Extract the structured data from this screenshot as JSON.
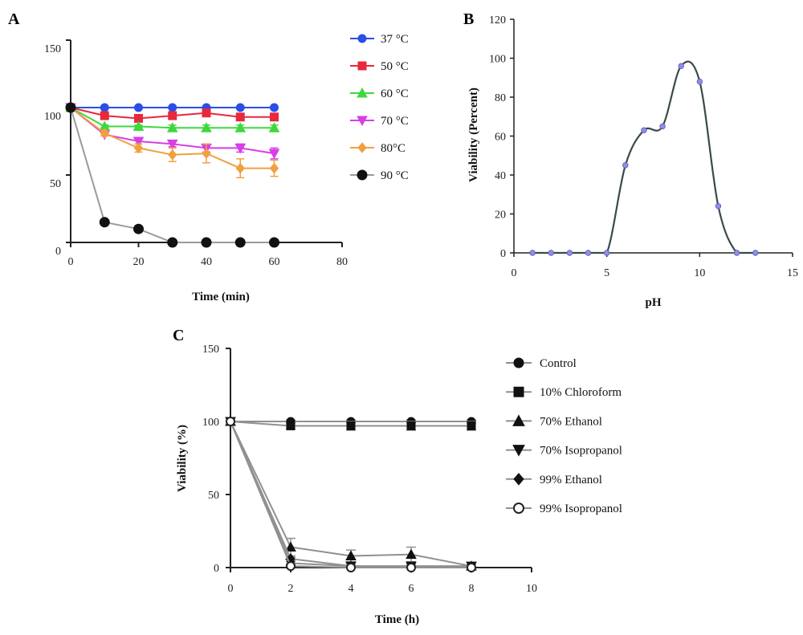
{
  "chart_data": [
    {
      "panel": "A",
      "type": "line",
      "xlabel": "Time (min)",
      "ylabel": "",
      "xlim": [
        0,
        80
      ],
      "ylim": [
        0,
        150
      ],
      "xticks": [
        "0",
        "20",
        "40",
        "60",
        "80"
      ],
      "yticks": [
        "0",
        "50",
        "100",
        "150"
      ],
      "x": [
        0,
        10,
        20,
        30,
        40,
        50,
        60
      ],
      "legend_position": "right",
      "series": [
        {
          "name": "37 °C",
          "color": "#2b4ee8",
          "marker": "circle",
          "values": [
            100,
            100,
            100,
            100,
            100,
            100,
            100
          ],
          "err": [
            0,
            0,
            0,
            0,
            0,
            0,
            0
          ]
        },
        {
          "name": "50 °C",
          "color": "#e8283c",
          "marker": "square",
          "values": [
            100,
            94,
            92,
            94,
            96,
            93,
            93
          ],
          "err": [
            0,
            1,
            1,
            1,
            1,
            2,
            2
          ]
        },
        {
          "name": "60 °C",
          "color": "#3ed83e",
          "marker": "triangle-up",
          "values": [
            100,
            86,
            86,
            85,
            85,
            85,
            85
          ],
          "err": [
            0,
            1,
            1,
            2,
            2,
            2,
            2
          ]
        },
        {
          "name": "70 °C",
          "color": "#d83ee6",
          "marker": "triangle-down",
          "values": [
            100,
            80,
            75,
            73,
            70,
            70,
            66
          ],
          "err": [
            0,
            1,
            2,
            2,
            3,
            3,
            4
          ]
        },
        {
          "name": "80°C",
          "color": "#f0a040",
          "marker": "diamond",
          "values": [
            100,
            81,
            70,
            65,
            66,
            55,
            55
          ],
          "err": [
            0,
            2,
            3,
            5,
            7,
            7,
            6
          ]
        },
        {
          "name": "90 °C",
          "color": "#111111",
          "marker": "circle",
          "line_color": "#9a9a9a",
          "values": [
            100,
            15,
            10,
            0,
            0,
            0,
            0
          ],
          "err": [
            0,
            0,
            0,
            0,
            0,
            0,
            0
          ]
        }
      ]
    },
    {
      "panel": "B",
      "type": "line",
      "xlabel": "pH",
      "ylabel": "Viability (Percent)",
      "xlim": [
        0,
        15
      ],
      "ylim": [
        0,
        120
      ],
      "xticks": [
        "0",
        "5",
        "10",
        "15"
      ],
      "yticks": [
        "0",
        "20",
        "40",
        "60",
        "80",
        "100",
        "120"
      ],
      "line_color": "#3a4a4a",
      "marker_color": "#8f8fe8",
      "x": [
        1,
        2,
        3,
        4,
        5,
        6,
        7,
        8,
        9,
        10,
        11,
        12,
        13
      ],
      "values": [
        0,
        0,
        0,
        0,
        0,
        45,
        63,
        65,
        96,
        88,
        24,
        0,
        0
      ]
    },
    {
      "panel": "C",
      "type": "line",
      "xlabel": "Time (h)",
      "ylabel": "Viability (%)",
      "xlim": [
        0,
        10
      ],
      "ylim": [
        0,
        150
      ],
      "xticks": [
        "0",
        "2",
        "4",
        "6",
        "8",
        "10"
      ],
      "yticks": [
        "0",
        "50",
        "100",
        "150"
      ],
      "x": [
        0,
        2,
        4,
        6,
        8
      ],
      "line_color": "#909090",
      "legend_position": "right",
      "series": [
        {
          "name": "Control",
          "marker": "circle",
          "values": [
            100,
            100,
            100,
            100,
            100
          ],
          "err": [
            0,
            1,
            1,
            1,
            1
          ]
        },
        {
          "name": "10% Chloroform",
          "marker": "square",
          "values": [
            100,
            97,
            97,
            97,
            97
          ],
          "err": [
            0,
            2,
            3,
            3,
            3
          ]
        },
        {
          "name": "70% Ethanol",
          "marker": "triangle-up",
          "values": [
            100,
            14,
            8,
            9,
            1
          ],
          "err": [
            0,
            6,
            4,
            5,
            1
          ]
        },
        {
          "name": "70% Isopropanol",
          "marker": "triangle-down",
          "values": [
            100,
            3,
            1,
            1,
            1
          ],
          "err": [
            0,
            1,
            1,
            1,
            1
          ]
        },
        {
          "name": "99% Ethanol",
          "marker": "diamond",
          "values": [
            100,
            6,
            1,
            0,
            0
          ],
          "err": [
            0,
            1,
            1,
            0,
            0
          ]
        },
        {
          "name": "99% Isopropanol",
          "marker": "circle-open",
          "values": [
            100,
            1,
            0,
            0,
            0
          ],
          "err": [
            0,
            0,
            0,
            0,
            0
          ]
        }
      ]
    }
  ]
}
